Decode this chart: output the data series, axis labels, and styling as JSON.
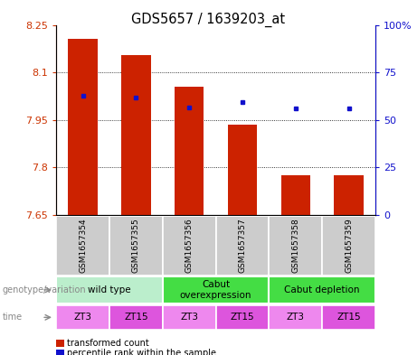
{
  "title": "GDS5657 / 1639203_at",
  "samples": [
    "GSM1657354",
    "GSM1657355",
    "GSM1657356",
    "GSM1657357",
    "GSM1657358",
    "GSM1657359"
  ],
  "red_values": [
    8.205,
    8.155,
    8.055,
    7.935,
    7.775,
    7.775
  ],
  "blue_values": [
    8.025,
    8.02,
    7.988,
    8.005,
    7.985,
    7.985
  ],
  "ylim_left": [
    7.65,
    8.25
  ],
  "ylim_right": [
    0,
    100
  ],
  "yticks_left": [
    7.65,
    7.8,
    7.95,
    8.1,
    8.25
  ],
  "ytick_labels_left": [
    "7.65",
    "7.8",
    "7.95",
    "8.1",
    "8.25"
  ],
  "yticks_right": [
    0,
    25,
    50,
    75,
    100
  ],
  "ytick_labels_right": [
    "0",
    "25",
    "50",
    "75",
    "100%"
  ],
  "hlines": [
    7.8,
    7.95,
    8.1
  ],
  "bar_color": "#cc2200",
  "dot_color": "#1111cc",
  "bar_width": 0.55,
  "wt_color": "#bbeecc",
  "cabut_over_color": "#44dd44",
  "cabut_dep_color": "#44dd44",
  "time_color_alt": "#ee88ee",
  "time_color": "#dd55dd",
  "time_labels": [
    "ZT3",
    "ZT15",
    "ZT3",
    "ZT15",
    "ZT3",
    "ZT15"
  ],
  "group_label": "genotype/variation",
  "time_label": "time",
  "legend_red": "transformed count",
  "legend_blue": "percentile rank within the sample",
  "left_tick_color": "#cc3300",
  "right_tick_color": "#1111cc",
  "sample_bg": "#cccccc"
}
